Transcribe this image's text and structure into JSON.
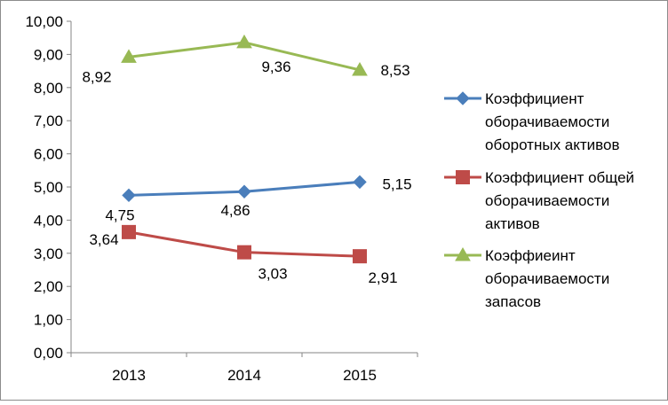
{
  "chart_data": {
    "type": "line",
    "categories": [
      "2013",
      "2014",
      "2015"
    ],
    "ylim": [
      0,
      10
    ],
    "yticks": [
      "0,00",
      "1,00",
      "2,00",
      "3,00",
      "4,00",
      "5,00",
      "6,00",
      "7,00",
      "8,00",
      "9,00",
      "10,00"
    ],
    "grid": false,
    "legend": "right",
    "series": [
      {
        "name": "Коэффициент оборачиваемости оборотных активов",
        "legend_lines": [
          "Коэффициент",
          "оборачиваемости",
          "оборотных активов"
        ],
        "values": [
          4.75,
          4.86,
          5.15
        ],
        "labels": [
          "4,75",
          "4,86",
          "5,15"
        ],
        "color": "#4a7ebb",
        "marker": "diamond"
      },
      {
        "name": "Коэффициент общей оборачиваемости активов",
        "legend_lines": [
          "Коэффициент общей",
          "оборачиваемости",
          "активов"
        ],
        "values": [
          3.64,
          3.03,
          2.91
        ],
        "labels": [
          "3,64",
          "3,03",
          "2,91"
        ],
        "color": "#be4b48",
        "marker": "square"
      },
      {
        "name": "Коэффиеинт оборачиваемости запасов",
        "legend_lines": [
          "Коэффиеинт",
          "оборачиваемости",
          "запасов"
        ],
        "values": [
          8.92,
          9.36,
          8.53
        ],
        "labels": [
          "8,92",
          "9,36",
          "8,53"
        ],
        "color": "#98b954",
        "marker": "triangle"
      }
    ]
  }
}
